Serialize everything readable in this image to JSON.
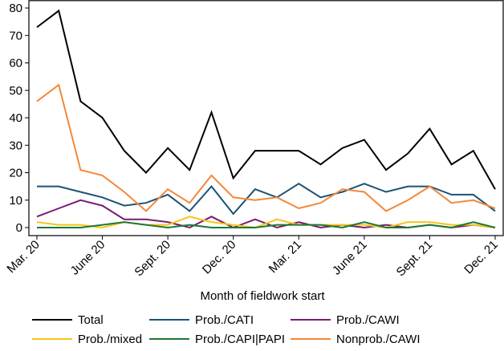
{
  "chart_data": {
    "type": "line",
    "title": "",
    "xlabel": "Month of fieldwork start",
    "ylabel": "",
    "ylim": [
      0,
      80
    ],
    "yticks": [
      0,
      10,
      20,
      30,
      40,
      50,
      60,
      70,
      80
    ],
    "grid": false,
    "legend_position": "bottom",
    "x": [
      "Mar. 20",
      "Apr. 20",
      "May 20",
      "June 20",
      "July 20",
      "Aug. 20",
      "Sept. 20",
      "Oct. 20",
      "Nov. 20",
      "Dec. 20",
      "Jan. 21",
      "Feb. 21",
      "Mar. 21",
      "Apr. 21",
      "May 21",
      "June 21",
      "July 21",
      "Aug. 21",
      "Sept. 21",
      "Oct. 21",
      "Nov. 21",
      "Dec. 21"
    ],
    "xtick_labels": [
      "Mar. 20",
      "June 20",
      "Sept. 20",
      "Dec. 20",
      "Mar. 21",
      "June 21",
      "Sept. 21",
      "Dec. 21"
    ],
    "xtick_positions": [
      0,
      3,
      6,
      9,
      12,
      15,
      18,
      21
    ],
    "series": [
      {
        "name": "Total",
        "color": "#000000",
        "values": [
          73,
          79,
          46,
          40,
          28,
          20,
          29,
          21,
          42,
          18,
          28,
          28,
          28,
          23,
          29,
          32,
          21,
          27,
          36,
          23,
          28,
          14
        ]
      },
      {
        "name": "Prob./CATI",
        "color": "#1a5276",
        "values": [
          15,
          15,
          13,
          11,
          8,
          9,
          12,
          6,
          15,
          5,
          14,
          11,
          16,
          11,
          13,
          16,
          13,
          15,
          15,
          12,
          12,
          6
        ]
      },
      {
        "name": "Prob./CAWI",
        "color": "#7b1b72",
        "values": [
          4,
          7,
          10,
          8,
          3,
          3,
          2,
          0,
          4,
          0,
          3,
          0,
          2,
          0,
          1,
          0,
          1,
          0,
          1,
          0,
          1,
          0
        ]
      },
      {
        "name": "Prob./mixed",
        "color": "#f5c518",
        "values": [
          2,
          1,
          1,
          0,
          2,
          1,
          1,
          4,
          2,
          1,
          0,
          3,
          1,
          1,
          1,
          1,
          0,
          2,
          2,
          1,
          1,
          0
        ]
      },
      {
        "name": "Prob./CAPI|PAPI",
        "color": "#1b7a34",
        "values": [
          0,
          0,
          0,
          1,
          2,
          1,
          0,
          1,
          0,
          0,
          0,
          1,
          1,
          1,
          0,
          2,
          0,
          0,
          1,
          0,
          2,
          0
        ]
      },
      {
        "name": "Nonprob./CAWI",
        "color": "#f4873a",
        "values": [
          46,
          52,
          21,
          19,
          13,
          6,
          14,
          9,
          19,
          11,
          10,
          11,
          7,
          9,
          14,
          13,
          6,
          10,
          15,
          9,
          10,
          7
        ]
      }
    ],
    "legend": [
      {
        "label": "Total",
        "series": 0
      },
      {
        "label": "Prob./CATI",
        "series": 1
      },
      {
        "label": "Prob./CAWI",
        "series": 2
      },
      {
        "label": "Prob./mixed",
        "series": 3
      },
      {
        "label": "Prob./CAPI|PAPI",
        "series": 4
      },
      {
        "label": "Nonprob./CAWI",
        "series": 5
      }
    ]
  }
}
